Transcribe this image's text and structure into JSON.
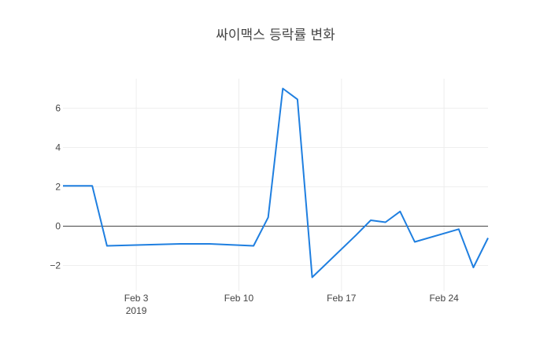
{
  "chart_data": {
    "type": "line",
    "title": "싸이맥스 등락률 변화",
    "xlabel": "",
    "ylabel": "",
    "x_range": [
      "2019-01-29",
      "2019-02-27"
    ],
    "ylim": [
      -3.3,
      7.5
    ],
    "x_ticks": [
      {
        "date": "2019-02-03",
        "label": "Feb 3",
        "sublabel": "2019"
      },
      {
        "date": "2019-02-10",
        "label": "Feb 10",
        "sublabel": ""
      },
      {
        "date": "2019-02-17",
        "label": "Feb 17",
        "sublabel": ""
      },
      {
        "date": "2019-02-24",
        "label": "Feb 24",
        "sublabel": ""
      }
    ],
    "y_ticks": [
      {
        "value": -2,
        "label": "−2"
      },
      {
        "value": 0,
        "label": "0"
      },
      {
        "value": 2,
        "label": "2"
      },
      {
        "value": 4,
        "label": "4"
      },
      {
        "value": 6,
        "label": "6"
      }
    ],
    "grid": true,
    "zero_line": true,
    "series": [
      {
        "color": "#1f7fe0",
        "points": [
          {
            "x": "2019-01-29",
            "y": 2.05
          },
          {
            "x": "2019-01-31",
            "y": 2.05
          },
          {
            "x": "2019-02-01",
            "y": -1.0
          },
          {
            "x": "2019-02-06",
            "y": -0.9
          },
          {
            "x": "2019-02-08",
            "y": -0.9
          },
          {
            "x": "2019-02-11",
            "y": -1.0
          },
          {
            "x": "2019-02-12",
            "y": 0.45
          },
          {
            "x": "2019-02-13",
            "y": 7.0
          },
          {
            "x": "2019-02-14",
            "y": 6.45
          },
          {
            "x": "2019-02-15",
            "y": -2.6
          },
          {
            "x": "2019-02-18",
            "y": -0.45
          },
          {
            "x": "2019-02-19",
            "y": 0.3
          },
          {
            "x": "2019-02-20",
            "y": 0.2
          },
          {
            "x": "2019-02-21",
            "y": 0.75
          },
          {
            "x": "2019-02-22",
            "y": -0.8
          },
          {
            "x": "2019-02-25",
            "y": -0.15
          },
          {
            "x": "2019-02-26",
            "y": -2.1
          },
          {
            "x": "2019-02-27",
            "y": -0.6
          }
        ]
      }
    ]
  }
}
